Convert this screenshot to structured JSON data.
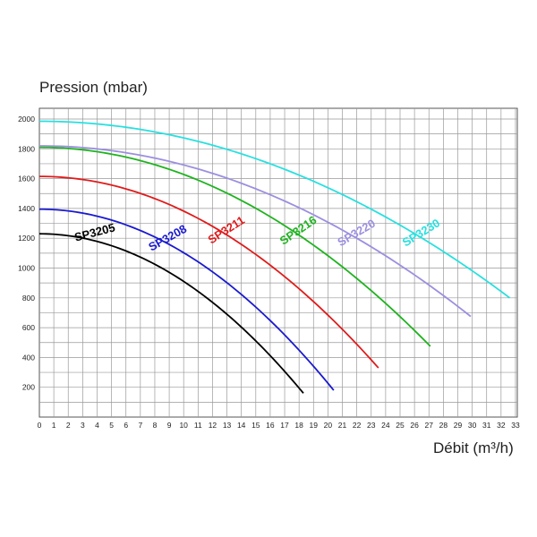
{
  "chart_data": {
    "type": "line",
    "ylabel": "Pression (mbar)",
    "xlabel": "Débit (m³/h)",
    "xlim": [
      0,
      33
    ],
    "ylim": [
      0,
      2000
    ],
    "xticks": [
      0,
      1,
      2,
      3,
      4,
      5,
      6,
      7,
      8,
      9,
      10,
      11,
      12,
      13,
      14,
      15,
      16,
      17,
      18,
      19,
      20,
      21,
      22,
      23,
      24,
      25,
      26,
      27,
      28,
      29,
      30,
      31,
      32,
      33
    ],
    "yticks": [
      200,
      400,
      600,
      800,
      1000,
      1200,
      1400,
      1600,
      1800,
      2000
    ],
    "grid": true,
    "series": [
      {
        "name": "SP3205",
        "color": "#000000",
        "h0": 1230,
        "xmax": 18.3,
        "yend": 160,
        "label_at": 4.0
      },
      {
        "name": "SP3208",
        "color": "#1a1ad0",
        "h0": 1395,
        "xmax": 20.4,
        "yend": 180,
        "label_at": 9.2
      },
      {
        "name": "SP3211",
        "color": "#e01b1b",
        "h0": 1615,
        "xmax": 23.5,
        "yend": 330,
        "label_at": 13.3
      },
      {
        "name": "SP3216",
        "color": "#1fb31f",
        "h0": 1810,
        "xmax": 27.1,
        "yend": 475,
        "label_at": 18.3
      },
      {
        "name": "SP3220",
        "color": "#9c8fe0",
        "h0": 1820,
        "xmax": 29.9,
        "yend": 675,
        "label_at": 22.3
      },
      {
        "name": "SP3230",
        "color": "#28e0e0",
        "h0": 1985,
        "xmax": 32.6,
        "yend": 800,
        "label_at": 26.8
      }
    ]
  }
}
